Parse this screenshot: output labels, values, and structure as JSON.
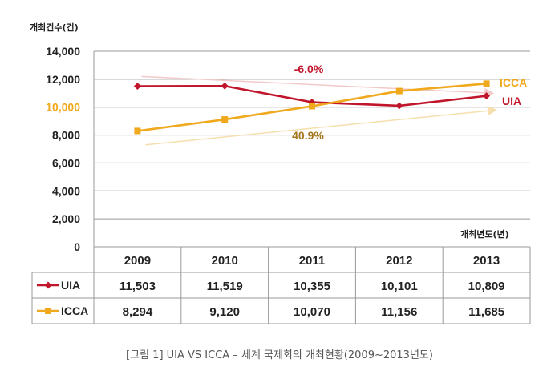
{
  "chart_data": {
    "type": "line",
    "ylabel": "개최건수(건)",
    "xlabel": "개최년도(년)",
    "categories": [
      "2009",
      "2010",
      "2011",
      "2012",
      "2013"
    ],
    "y_ticks": [
      "0",
      "2,000",
      "4,000",
      "6,000",
      "8,000",
      "10,000",
      "12,000",
      "14,000"
    ],
    "ylim": [
      0,
      14000
    ],
    "grid": true,
    "legend": "table-left",
    "series": [
      {
        "name": "UIA",
        "color": "#c0152b",
        "marker": "diamond",
        "values": [
          11503,
          11519,
          10355,
          10101,
          10809
        ],
        "labels": [
          "11,503",
          "11,519",
          "10,355",
          "10,101",
          "10,809"
        ]
      },
      {
        "name": "ICCA",
        "color": "#f0a81c",
        "marker": "square",
        "values": [
          8294,
          9120,
          10070,
          11156,
          11685
        ],
        "labels": [
          "8,294",
          "9,120",
          "10,070",
          "11,156",
          "11,685"
        ]
      }
    ],
    "annotations": {
      "uia_change": "-6.0%",
      "icca_change": "40.9%",
      "end_label_icca": "ICCA",
      "end_label_uia": "UIA"
    }
  },
  "caption": "[그림 1] UIA VS ICCA – 세계 국제회의 개최현황(2009~2013년도)"
}
